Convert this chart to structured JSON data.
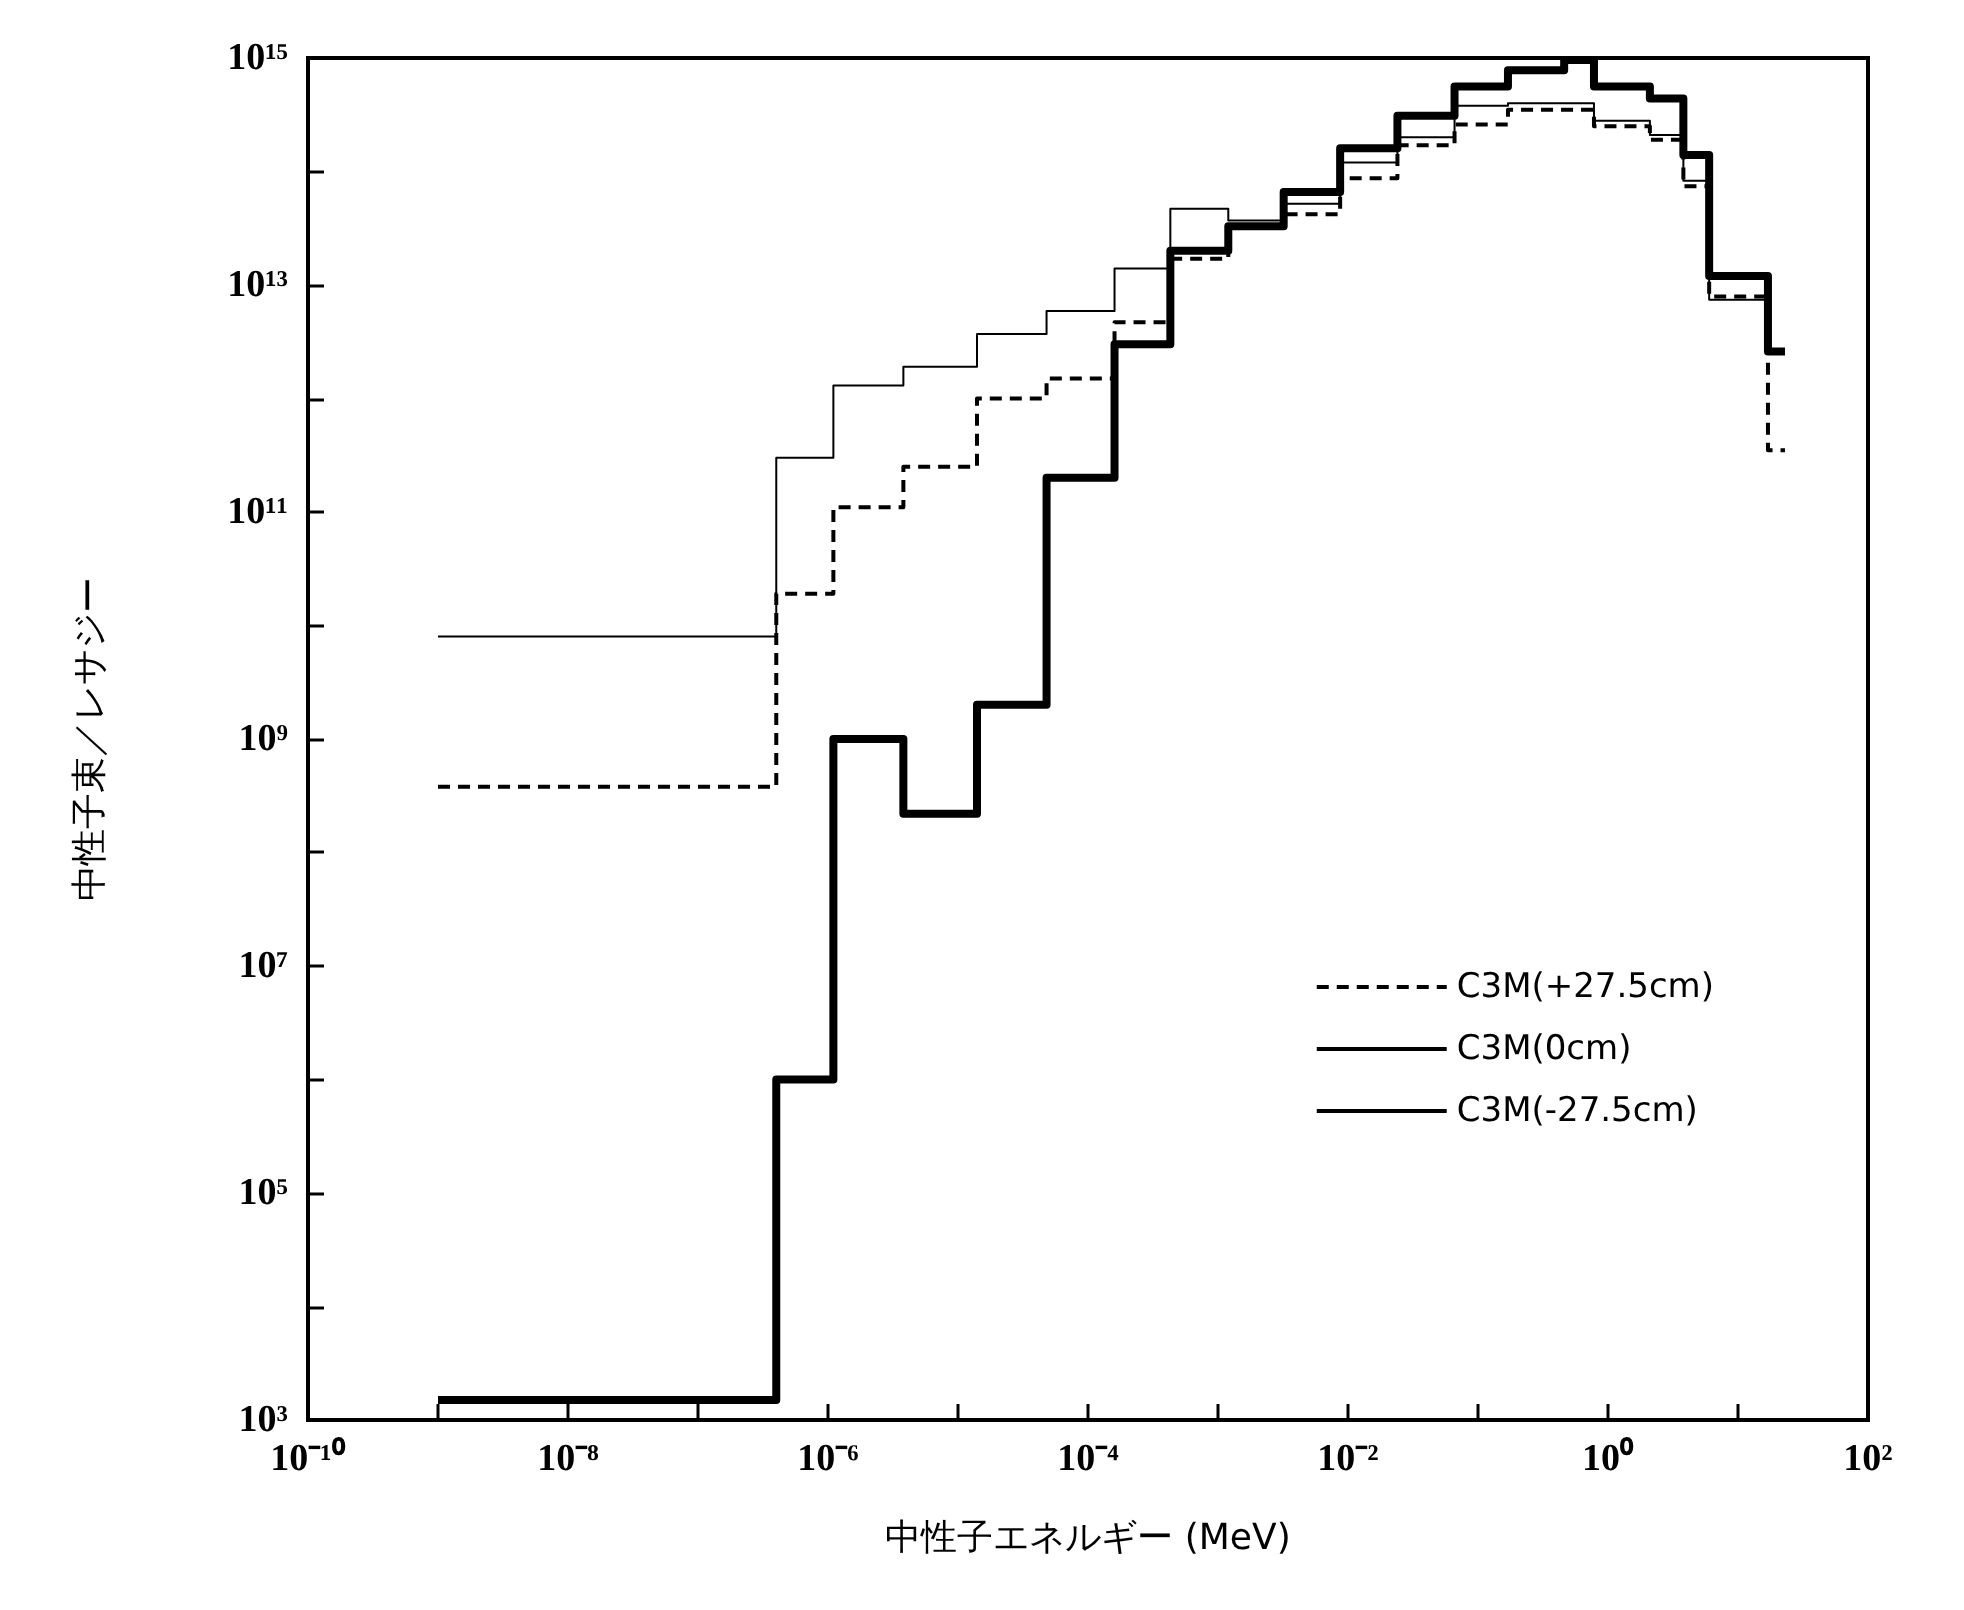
{
  "chart_data": {
    "type": "step",
    "xlabel": "中性子エネルギー (MeV)",
    "ylabel": "中性子束／レサジー",
    "x": [
      1e-09,
      4e-07,
      1.1e-06,
      3.8e-06,
      1.4e-05,
      4.8e-05,
      0.00016,
      0.00043,
      0.0012,
      0.0032,
      0.0087,
      0.024,
      0.066,
      0.17,
      0.46,
      0.78,
      2.1,
      3.8,
      6,
      17,
      23
    ],
    "series": [
      {
        "name": "C3M(+27.5cm)",
        "color": "#000000",
        "line_style": "dashed",
        "values": [
          380000000.0,
          19000000000.0,
          110000000000.0,
          250000000000.0,
          1000000000000.0,
          1500000000000.0,
          4700000000000.0,
          17000000000000.0,
          33000000000000.0,
          42000000000000.0,
          87000000000000.0,
          170000000000000.0,
          260000000000000.0,
          350000000000000.0,
          350000000000000.0,
          250000000000000.0,
          190000000000000.0,
          74000000000000.0,
          7900000000000.0,
          350000000000.0,
          350000000000.0
        ]
      },
      {
        "name": "C3M(0cm)",
        "color": "#000000",
        "line_style": "solid",
        "values": [
          1500.0,
          1000000.0,
          1000000000.0,
          220000000.0,
          2000000000.0,
          200000000000.0,
          3000000000000.0,
          20000000000000.0,
          33000000000000.0,
          66000000000000.0,
          160000000000000.0,
          310000000000000.0,
          560000000000000.0,
          780000000000000.0,
          960000000000000.0,
          560000000000000.0,
          440000000000000.0,
          140000000000000.0,
          12000000000000.0,
          2600000000000.0,
          2600000000000.0
        ]
      },
      {
        "name": "C3M(-27.5cm)",
        "color": "#000000",
        "line_style": "solid",
        "x": [
          1e-09,
          4e-07,
          1.1e-06,
          3.8e-06,
          1.4e-05,
          4.8e-05,
          0.00016,
          0.00043,
          0.0012,
          0.0032,
          0.0087,
          0.024,
          0.066,
          0.17,
          0.46,
          0.78,
          2.1,
          3.8,
          6,
          17
        ],
        "values": [
          8000000000.0,
          300000000000.0,
          1300000000000.0,
          1900000000000.0,
          3700000000000.0,
          5900000000000.0,
          14000000000000.0,
          47000000000000.0,
          37000000000000.0,
          52000000000000.0,
          120000000000000.0,
          200000000000000.0,
          380000000000000.0,
          400000000000000.0,
          400000000000000.0,
          280000000000000.0,
          210000000000000.0,
          83000000000000.0,
          7400000000000.0,
          7400000000000.0
        ]
      }
    ],
    "log": "xy",
    "xlim": [
      1e-10,
      100
    ],
    "xticks": [
      {
        "value": 1e-10,
        "label": "10⁻¹⁰"
      },
      {
        "value": 1e-09,
        "label": null
      },
      {
        "value": 1e-08,
        "label": "10⁻⁸"
      },
      {
        "value": 1e-07,
        "label": null
      },
      {
        "value": 1e-06,
        "label": "10⁻⁶"
      },
      {
        "value": 1e-05,
        "label": null
      },
      {
        "value": 0.0001,
        "label": "10⁻⁴"
      },
      {
        "value": 0.001,
        "label": null
      },
      {
        "value": 0.01,
        "label": "10⁻²"
      },
      {
        "value": 0.1,
        "label": null
      },
      {
        "value": 1,
        "label": "10⁰"
      },
      {
        "value": 10,
        "label": null
      },
      {
        "value": 100,
        "label": "10²"
      }
    ],
    "ylim": [
      1000.0,
      1000000000000000.0
    ],
    "yticks": [
      {
        "value": 1000.0,
        "label": "10³"
      },
      {
        "value": 10000.0,
        "label": null
      },
      {
        "value": 100000.0,
        "label": "10⁵"
      },
      {
        "value": 1000000.0,
        "label": null
      },
      {
        "value": 10000000.0,
        "label": "10⁷"
      },
      {
        "value": 100000000.0,
        "label": null
      },
      {
        "value": 1000000000.0,
        "label": "10⁹"
      },
      {
        "value": 10000000000.0,
        "label": null
      },
      {
        "value": 100000000000.0,
        "label": "10¹¹"
      },
      {
        "value": 1000000000000.0,
        "label": null
      },
      {
        "value": 10000000000000.0,
        "label": "10¹³"
      },
      {
        "value": 100000000000000.0,
        "label": null
      },
      {
        "value": 1000000000000000.0,
        "label": "10¹⁵"
      }
    ],
    "grid": false,
    "legend": "right",
    "marker": "none"
  }
}
